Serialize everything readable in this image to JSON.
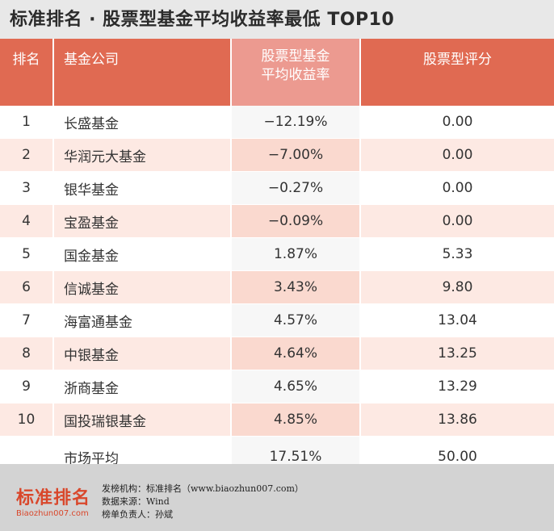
{
  "title": "标准排名 · 股票型基金平均收益率最低 TOP10",
  "headers": {
    "rank": "排名",
    "company": "基金公司",
    "return_line1": "股票型基金",
    "return_line2": "平均收益率",
    "score": "股票型评分"
  },
  "rows": [
    {
      "rank": "1",
      "company": "长盛基金",
      "return": "−12.19%",
      "score": "0.00"
    },
    {
      "rank": "2",
      "company": "华润元大基金",
      "return": "−7.00%",
      "score": "0.00"
    },
    {
      "rank": "3",
      "company": "银华基金",
      "return": "−0.27%",
      "score": "0.00"
    },
    {
      "rank": "4",
      "company": "宝盈基金",
      "return": "−0.09%",
      "score": "0.00"
    },
    {
      "rank": "5",
      "company": "国金基金",
      "return": "1.87%",
      "score": "5.33"
    },
    {
      "rank": "6",
      "company": "信诚基金",
      "return": "3.43%",
      "score": "9.80"
    },
    {
      "rank": "7",
      "company": "海富通基金",
      "return": "4.57%",
      "score": "13.04"
    },
    {
      "rank": "8",
      "company": "中银基金",
      "return": "4.64%",
      "score": "13.25"
    },
    {
      "rank": "9",
      "company": "浙商基金",
      "return": "4.65%",
      "score": "13.29"
    },
    {
      "rank": "10",
      "company": "国投瑞银基金",
      "return": "4.85%",
      "score": "13.86"
    }
  ],
  "average": {
    "label": "市场平均",
    "return": "17.51%",
    "score": "50.00"
  },
  "footer": {
    "logo_main": "标准排名",
    "logo_sub": "Biaozhun007.com",
    "publisher": "发榜机构：标准排名（www.biaozhun007.com）",
    "source": "数据来源：Wind",
    "editor": "榜单负责人：孙斌"
  }
}
